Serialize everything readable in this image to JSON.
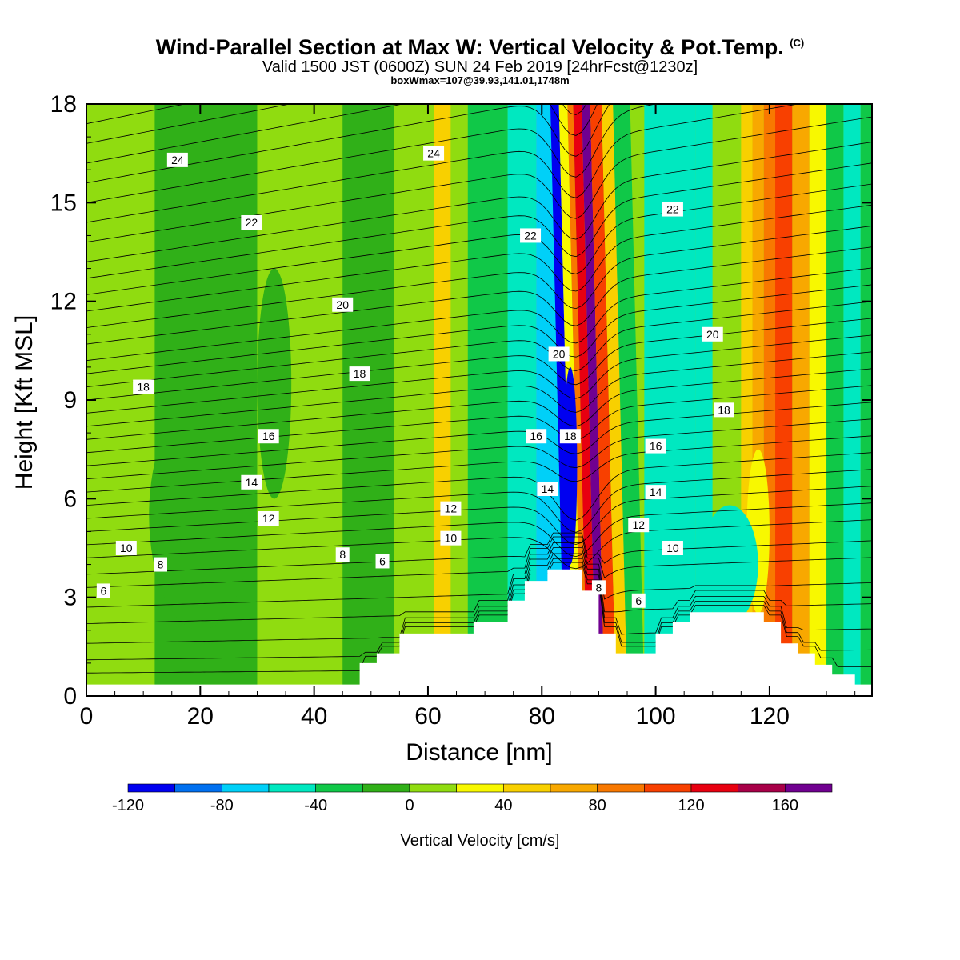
{
  "header": {
    "title": "Wind-Parallel Section at Max W: Vertical Velocity & Pot.Temp.",
    "title_mark": "(C)",
    "subtitle": "Valid 1500 JST (0600Z) SUN 24 Feb 2019 [24hrFcst@1230z]",
    "note": "boxWmax=107@39.93,141.01,1748m"
  },
  "chart_data": {
    "type": "heatmap",
    "xlabel": "Distance [nm]",
    "ylabel": "Height [Kft MSL]",
    "xlim": [
      0,
      138
    ],
    "ylim": [
      0,
      18
    ],
    "xticks": [
      0,
      20,
      40,
      60,
      80,
      100,
      120
    ],
    "yticks": [
      0,
      3,
      6,
      9,
      12,
      15,
      18
    ],
    "colorbar": {
      "label": "Vertical Velocity [cm/s]",
      "boundaries": [
        -120,
        -100,
        -80,
        -60,
        -40,
        -20,
        0,
        20,
        40,
        60,
        80,
        100,
        120,
        140,
        160,
        180
      ],
      "tick_values": [
        -120,
        -80,
        -40,
        0,
        40,
        80,
        120,
        160
      ],
      "colors": [
        "#0000f0",
        "#0070f0",
        "#00d0f8",
        "#00e8c0",
        "#10c848",
        "#30b018",
        "#90dc10",
        "#f8f800",
        "#f8d000",
        "#f8a800",
        "#f87800",
        "#f84000",
        "#e80010",
        "#a80048",
        "#700090"
      ]
    },
    "bands": [
      {
        "x0": 0,
        "x1": 2,
        "w": 5
      },
      {
        "x0": 2,
        "x1": 15,
        "w": 10
      },
      {
        "x0": 12,
        "x1": 30,
        "w": -10
      },
      {
        "x0": 30,
        "x1": 38,
        "w": 10
      },
      {
        "x0": 38,
        "x1": 45,
        "w": 5
      },
      {
        "x0": 45,
        "x1": 54,
        "w": -15
      },
      {
        "x0": 54,
        "x1": 61,
        "w": 10
      },
      {
        "x0": 61,
        "x1": 64,
        "w": 45
      },
      {
        "x0": 64,
        "x1": 67,
        "w": 10
      },
      {
        "x0": 67,
        "x1": 74,
        "w": -25
      },
      {
        "x0": 74,
        "x1": 79,
        "w": -45
      },
      {
        "x0": 79,
        "x1": 84,
        "w": -65
      },
      {
        "x0": 84,
        "x1": 85.5,
        "w": -105
      },
      {
        "x0": 85.5,
        "x1": 87,
        "w": 30
      },
      {
        "x0": 87,
        "x1": 88,
        "w": 90
      },
      {
        "x0": 88,
        "x1": 89.5,
        "w": 130
      },
      {
        "x0": 89.5,
        "x1": 91,
        "w": 170
      },
      {
        "x0": 91,
        "x1": 93,
        "w": 115
      },
      {
        "x0": 93,
        "x1": 95,
        "w": 50
      },
      {
        "x0": 95,
        "x1": 98,
        "w": -30
      },
      {
        "x0": 98,
        "x1": 107,
        "w": -60
      },
      {
        "x0": 107,
        "x1": 110,
        "w": -45
      },
      {
        "x0": 110,
        "x1": 115,
        "w": 10
      },
      {
        "x0": 115,
        "x1": 117,
        "w": 45
      },
      {
        "x0": 117,
        "x1": 119,
        "w": 65
      },
      {
        "x0": 119,
        "x1": 121,
        "w": 85
      },
      {
        "x0": 121,
        "x1": 124,
        "w": 110
      },
      {
        "x0": 124,
        "x1": 127,
        "w": 70
      },
      {
        "x0": 127,
        "x1": 130,
        "w": 30
      },
      {
        "x0": 130,
        "x1": 133,
        "w": -30
      },
      {
        "x0": 133,
        "x1": 136,
        "w": -50
      },
      {
        "x0": 136,
        "x1": 138,
        "w": -25
      }
    ],
    "blobs": [
      {
        "cx": 20,
        "cy": 5.5,
        "rx": 9,
        "ry": 3.5,
        "w": -15
      },
      {
        "cx": 33,
        "cy": 9.5,
        "rx": 3,
        "ry": 3.5,
        "w": -15
      },
      {
        "cx": 85,
        "cy": 7,
        "rx": 1.2,
        "ry": 3,
        "w": -115
      },
      {
        "cx": 118,
        "cy": 5,
        "rx": 2,
        "ry": 2.5,
        "w": 30
      },
      {
        "cx": 113,
        "cy": 4,
        "rx": 5,
        "ry": 1.8,
        "w": -50
      }
    ],
    "terrain": [
      [
        0,
        0.35
      ],
      [
        48,
        0.35
      ],
      [
        48,
        1.0
      ],
      [
        51,
        1.0
      ],
      [
        51,
        1.3
      ],
      [
        55,
        1.3
      ],
      [
        55,
        1.9
      ],
      [
        68,
        1.9
      ],
      [
        68,
        2.25
      ],
      [
        74,
        2.25
      ],
      [
        74,
        2.9
      ],
      [
        77,
        2.9
      ],
      [
        77,
        3.5
      ],
      [
        81,
        3.5
      ],
      [
        81,
        3.85
      ],
      [
        87,
        3.85
      ],
      [
        87,
        3.2
      ],
      [
        90,
        3.2
      ],
      [
        90,
        1.9
      ],
      [
        93,
        1.9
      ],
      [
        93,
        1.3
      ],
      [
        100,
        1.3
      ],
      [
        100,
        1.9
      ],
      [
        103,
        1.9
      ],
      [
        103,
        2.25
      ],
      [
        106,
        2.25
      ],
      [
        106,
        2.55
      ],
      [
        119,
        2.55
      ],
      [
        119,
        2.25
      ],
      [
        122,
        2.25
      ],
      [
        122,
        1.6
      ],
      [
        125,
        1.6
      ],
      [
        125,
        1.3
      ],
      [
        128,
        1.3
      ],
      [
        128,
        0.95
      ],
      [
        131,
        0.95
      ],
      [
        131,
        0.65
      ],
      [
        135,
        0.65
      ],
      [
        135,
        0.35
      ],
      [
        138,
        0.35
      ]
    ],
    "isentropes": {
      "base_levels": [
        0.7,
        1.1,
        1.6,
        2.2,
        2.7,
        3.3,
        3.7,
        4.2,
        4.6,
        5.0,
        5.4,
        5.8,
        6.2,
        6.6,
        7.0,
        7.4,
        7.8,
        8.2,
        8.6,
        9.0,
        9.4,
        9.8,
        10.2,
        10.7,
        11.2,
        11.7,
        12.2,
        12.7,
        13.2,
        13.8,
        14.4,
        15.0,
        15.6,
        16.2,
        16.8,
        17.4
      ],
      "labels": [
        {
          "text": "6",
          "x": 3,
          "y": 3.2
        },
        {
          "text": "8",
          "x": 13,
          "y": 4.0
        },
        {
          "text": "10",
          "x": 7,
          "y": 4.5
        },
        {
          "text": "12",
          "x": 32,
          "y": 5.4
        },
        {
          "text": "14",
          "x": 29,
          "y": 6.5
        },
        {
          "text": "16",
          "x": 32,
          "y": 7.9
        },
        {
          "text": "18",
          "x": 10,
          "y": 9.4
        },
        {
          "text": "20",
          "x": 45,
          "y": 11.9
        },
        {
          "text": "22",
          "x": 29,
          "y": 14.4
        },
        {
          "text": "24",
          "x": 16,
          "y": 16.3
        },
        {
          "text": "8",
          "x": 45,
          "y": 4.3
        },
        {
          "text": "6",
          "x": 52,
          "y": 4.1
        },
        {
          "text": "10",
          "x": 64,
          "y": 4.8
        },
        {
          "text": "12",
          "x": 64,
          "y": 5.7
        },
        {
          "text": "18",
          "x": 48,
          "y": 9.8
        },
        {
          "text": "24",
          "x": 61,
          "y": 16.5
        },
        {
          "text": "22",
          "x": 78,
          "y": 14.0
        },
        {
          "text": "20",
          "x": 83,
          "y": 10.4
        },
        {
          "text": "16",
          "x": 79,
          "y": 7.9
        },
        {
          "text": "14",
          "x": 81,
          "y": 6.3
        },
        {
          "text": "18",
          "x": 85,
          "y": 7.9
        },
        {
          "text": "8",
          "x": 90,
          "y": 3.3
        },
        {
          "text": "6",
          "x": 97,
          "y": 2.9
        },
        {
          "text": "12",
          "x": 97,
          "y": 5.2
        },
        {
          "text": "10",
          "x": 103,
          "y": 4.5
        },
        {
          "text": "14",
          "x": 100,
          "y": 6.2
        },
        {
          "text": "16",
          "x": 100,
          "y": 7.6
        },
        {
          "text": "18",
          "x": 112,
          "y": 8.7
        },
        {
          "text": "20",
          "x": 110,
          "y": 11.0
        },
        {
          "text": "22",
          "x": 103,
          "y": 14.8
        }
      ]
    }
  }
}
